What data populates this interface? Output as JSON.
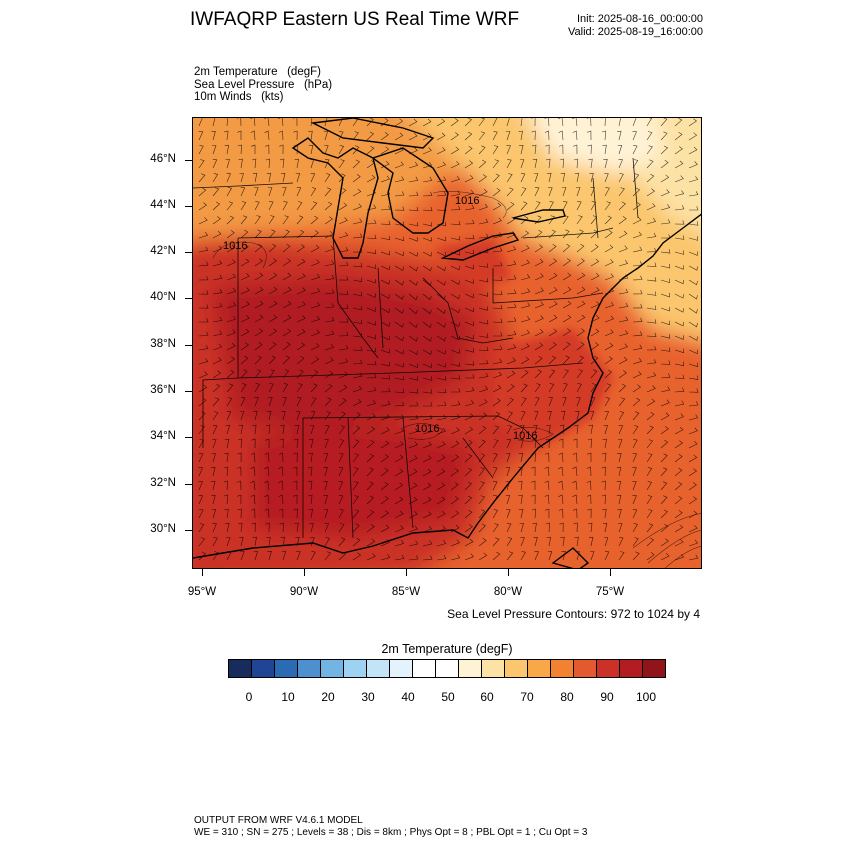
{
  "header": {
    "title": "IWFAQRP Eastern US Real Time WRF",
    "init": "Init: 2025-08-16_00:00:00",
    "valid": "Valid: 2025-08-19_16:00:00"
  },
  "fields": [
    "2m Temperature   (degF)",
    "Sea Level Pressure   (hPa)",
    "10m Winds   (kts)"
  ],
  "map": {
    "lat_labels": [
      "46°N",
      "44°N",
      "42°N",
      "40°N",
      "38°N",
      "36°N",
      "34°N",
      "32°N",
      "30°N"
    ],
    "lon_labels": [
      "95°W",
      "90°W",
      "85°W",
      "80°W",
      "75°W"
    ],
    "contour_labels": [
      "1016",
      "1016",
      "1016",
      "1016"
    ],
    "colors": {
      "hot": "#b61e21",
      "warm": "#d43a26",
      "orange": "#e8622e",
      "light_orange": "#f39a45",
      "yellow": "#fcd084",
      "pale": "#fff3d8",
      "water": "#f28436"
    }
  },
  "slp_note": "Sea Level Pressure Contours: 972 to 1024 by 4",
  "colorbar": {
    "title": "2m Temperature  (degF)",
    "colors": [
      "#172b5c",
      "#1f4594",
      "#2b6bb3",
      "#4e90cd",
      "#72b5e2",
      "#9dd2f3",
      "#c3e3f7",
      "#e4f2fb",
      "#ffffff",
      "#ffffff",
      "#fff3d6",
      "#fde2a5",
      "#fbc66d",
      "#f8a849",
      "#f08232",
      "#e25a2d",
      "#cb3126",
      "#b11d21",
      "#8f151a"
    ],
    "labels": [
      "0",
      "10",
      "20",
      "30",
      "40",
      "50",
      "60",
      "70",
      "80",
      "90",
      "100"
    ]
  },
  "footer": {
    "line1": "OUTPUT FROM WRF V4.6.1 MODEL",
    "line2": "WE = 310 ; SN = 275 ; Levels = 38 ; Dis = 8km ; Phys Opt = 8 ; PBL Opt = 1 ; Cu Opt = 3"
  }
}
